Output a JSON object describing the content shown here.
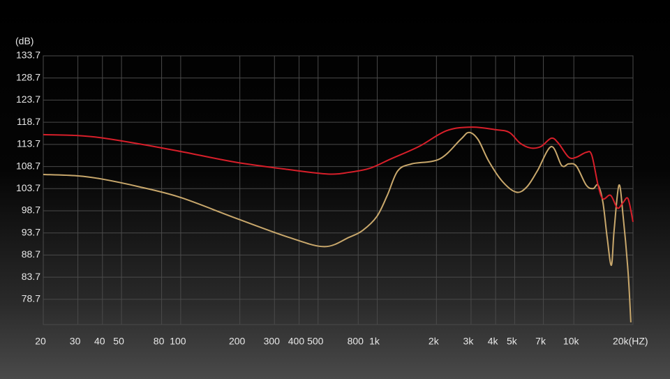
{
  "chart_data": {
    "type": "line",
    "y_label": "(dB)",
    "x_label": "(HZ)",
    "log_x": true,
    "grid": true,
    "xlim": [
      20,
      20000
    ],
    "ylim": [
      73.0,
      133.7
    ],
    "xticks": [
      20,
      30,
      40,
      50,
      80,
      100,
      200,
      300,
      400,
      500,
      800,
      {
        "value": 1000,
        "label": "1k"
      },
      {
        "value": 2000,
        "label": "2k"
      },
      {
        "value": 3000,
        "label": "3k"
      },
      {
        "value": 4000,
        "label": "4k"
      },
      {
        "value": 5000,
        "label": "5k"
      },
      {
        "value": 7000,
        "label": "7k"
      },
      {
        "value": 10000,
        "label": "10k"
      },
      {
        "value": 20000,
        "label": "20k"
      }
    ],
    "yticks": [
      133.7,
      128.7,
      123.7,
      118.7,
      113.7,
      108.7,
      103.7,
      98.7,
      93.7,
      88.7,
      83.7,
      78.7
    ],
    "series": [
      {
        "name": "Red",
        "color": "#d81f2a",
        "x": [
          20,
          29.6,
          39.4,
          61.8,
          100,
          189,
          355,
          561,
          723,
          917,
          1170,
          1626,
          2254,
          3025,
          4028,
          4700,
          5320,
          6010,
          6797,
          7680,
          8335,
          9420,
          10300,
          11560,
          12330,
          13280,
          14060,
          15380,
          16680,
          17820,
          18880,
          20000
        ],
        "values": [
          115.9,
          115.7,
          115.2,
          113.8,
          112.1,
          109.7,
          108.0,
          107.0,
          107.4,
          108.3,
          110.4,
          113.2,
          116.8,
          117.6,
          117.0,
          116.4,
          114.0,
          112.9,
          113.2,
          115.1,
          114.0,
          110.8,
          110.8,
          111.9,
          111.3,
          104.5,
          101.4,
          102.2,
          99.3,
          100.6,
          101.4,
          96.2
        ]
      },
      {
        "name": "Gold",
        "color": "#c9a86c",
        "x": [
          20,
          29.6,
          39.4,
          61.8,
          100,
          189,
          355,
          539,
          718,
          845,
          995,
          1125,
          1271,
          1497,
          2077,
          2653,
          2927,
          3256,
          3682,
          4336,
          5105,
          5770,
          6520,
          7680,
          8680,
          9420,
          10300,
          11560,
          12540,
          13280,
          14060,
          14770,
          15520,
          16030,
          16970,
          17820,
          18880,
          19500
        ],
        "values": [
          106.9,
          106.6,
          105.9,
          104.1,
          101.7,
          97.1,
          92.7,
          90.6,
          92.7,
          94.3,
          97.4,
          102.2,
          107.7,
          109.3,
          110.4,
          114.8,
          116.4,
          114.8,
          110.0,
          105.3,
          102.9,
          104.1,
          107.7,
          113.2,
          108.9,
          109.3,
          108.8,
          104.5,
          103.7,
          104.5,
          100.6,
          92.7,
          86.4,
          94.3,
          104.5,
          97.4,
          84.8,
          73.5
        ]
      }
    ]
  }
}
